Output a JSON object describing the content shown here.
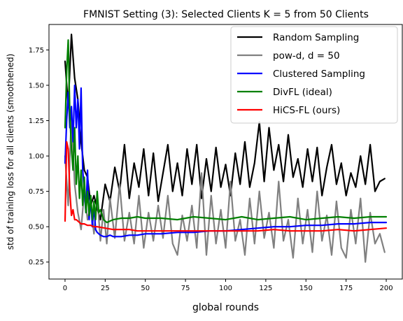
{
  "chart_data": {
    "type": "line",
    "title": "FMNIST Setting (3): Selected Clients K = 5 from 50 Clients",
    "xlabel": "global rounds",
    "ylabel": "std of training loss for all clients (smoothened)",
    "xlim": [
      -10,
      210
    ],
    "ylim": [
      0.13,
      1.93
    ],
    "xticks": [
      0,
      25,
      50,
      75,
      100,
      125,
      150,
      175,
      200
    ],
    "yticks": [
      0.25,
      0.5,
      0.75,
      1.0,
      1.25,
      1.5,
      1.75
    ],
    "ytick_labels": [
      "0.25",
      "0.50",
      "0.75",
      "1.00",
      "1.25",
      "1.50",
      "1.75"
    ],
    "grid": false,
    "legend_position": "top-right",
    "series": [
      {
        "name": "Random Sampling",
        "color": "#000000",
        "x": [
          0,
          2,
          4,
          5,
          6,
          8,
          10,
          12,
          14,
          16,
          18,
          20,
          22,
          25,
          28,
          31,
          34,
          37,
          40,
          43,
          46,
          49,
          52,
          55,
          58,
          61,
          64,
          67,
          70,
          73,
          76,
          79,
          82,
          85,
          88,
          91,
          94,
          97,
          100,
          103,
          106,
          109,
          112,
          115,
          118,
          121,
          124,
          127,
          130,
          133,
          136,
          139,
          142,
          145,
          148,
          151,
          154,
          157,
          160,
          163,
          166,
          169,
          172,
          175,
          178,
          181,
          184,
          187,
          190,
          193,
          196,
          199
        ],
        "values": [
          1.67,
          1.35,
          1.86,
          1.7,
          1.55,
          1.4,
          1.1,
          0.9,
          0.85,
          0.65,
          0.72,
          0.63,
          0.55,
          0.8,
          0.68,
          0.92,
          0.75,
          1.08,
          0.7,
          0.95,
          0.78,
          1.05,
          0.72,
          1.02,
          0.68,
          0.88,
          1.08,
          0.75,
          0.95,
          0.72,
          1.05,
          0.8,
          1.08,
          0.7,
          0.98,
          0.75,
          1.06,
          0.78,
          0.94,
          0.72,
          1.02,
          0.8,
          1.1,
          0.78,
          0.95,
          1.24,
          0.82,
          1.2,
          0.9,
          1.08,
          0.82,
          1.15,
          0.85,
          0.98,
          0.78,
          1.05,
          0.82,
          1.06,
          0.72,
          0.92,
          1.08,
          0.8,
          0.95,
          0.72,
          0.88,
          0.78,
          1.0,
          0.8,
          1.08,
          0.75,
          0.82,
          0.84
        ]
      },
      {
        "name": "pow-d, d = 50",
        "color": "#808080",
        "x": [
          0,
          2,
          4,
          6,
          8,
          10,
          12,
          14,
          16,
          18,
          20,
          22,
          24,
          26,
          28,
          31,
          34,
          37,
          40,
          43,
          46,
          49,
          52,
          55,
          58,
          61,
          64,
          67,
          70,
          73,
          76,
          79,
          82,
          85,
          88,
          91,
          94,
          97,
          100,
          103,
          106,
          109,
          112,
          115,
          118,
          121,
          124,
          127,
          130,
          133,
          136,
          139,
          142,
          145,
          148,
          151,
          154,
          157,
          160,
          163,
          166,
          169,
          172,
          175,
          178,
          181,
          184,
          187,
          190,
          193,
          196,
          199
        ],
        "values": [
          1.0,
          0.65,
          1.3,
          0.8,
          0.6,
          0.48,
          0.75,
          0.55,
          0.65,
          0.45,
          0.72,
          0.4,
          0.62,
          0.38,
          0.7,
          0.42,
          0.8,
          0.4,
          0.6,
          0.38,
          0.72,
          0.35,
          0.6,
          0.4,
          0.65,
          0.42,
          0.72,
          0.38,
          0.3,
          0.58,
          0.4,
          0.65,
          0.35,
          0.88,
          0.3,
          0.72,
          0.38,
          0.62,
          0.35,
          0.82,
          0.4,
          0.55,
          0.3,
          0.7,
          0.38,
          0.75,
          0.42,
          0.6,
          0.35,
          0.82,
          0.4,
          0.55,
          0.28,
          0.7,
          0.38,
          0.62,
          0.32,
          0.75,
          0.4,
          0.58,
          0.3,
          0.68,
          0.35,
          0.28,
          0.62,
          0.38,
          0.7,
          0.25,
          0.6,
          0.38,
          0.45,
          0.32
        ]
      },
      {
        "name": "Clustered Sampling",
        "color": "#0000ff",
        "x": [
          0,
          1,
          2,
          3,
          4,
          5,
          6,
          7,
          8,
          9,
          10,
          11,
          12,
          13,
          14,
          15,
          16,
          17,
          18,
          19,
          20,
          22,
          24,
          26,
          28,
          30,
          35,
          40,
          45,
          50,
          60,
          70,
          80,
          90,
          100,
          110,
          120,
          130,
          140,
          150,
          160,
          170,
          180,
          190,
          200
        ],
        "values": [
          0.95,
          1.25,
          1.45,
          1.2,
          1.35,
          1.1,
          1.5,
          1.2,
          1.4,
          1.05,
          1.48,
          0.9,
          0.75,
          0.6,
          0.9,
          0.55,
          0.7,
          0.5,
          0.65,
          0.48,
          0.46,
          0.44,
          0.43,
          0.43,
          0.44,
          0.43,
          0.43,
          0.44,
          0.44,
          0.45,
          0.45,
          0.46,
          0.46,
          0.47,
          0.47,
          0.48,
          0.49,
          0.5,
          0.5,
          0.51,
          0.51,
          0.52,
          0.52,
          0.53,
          0.53
        ]
      },
      {
        "name": "DivFL (ideal)",
        "color": "#008000",
        "x": [
          0,
          1,
          2,
          3,
          4,
          5,
          6,
          7,
          8,
          9,
          10,
          11,
          12,
          13,
          14,
          15,
          16,
          17,
          18,
          19,
          20,
          21,
          22,
          24,
          26,
          28,
          30,
          35,
          40,
          45,
          50,
          60,
          70,
          80,
          90,
          100,
          110,
          120,
          130,
          140,
          150,
          160,
          170,
          180,
          190,
          200
        ],
        "values": [
          1.2,
          1.6,
          1.82,
          1.3,
          1.05,
          0.9,
          1.2,
          0.8,
          1.0,
          0.7,
          0.9,
          0.65,
          0.85,
          0.6,
          0.75,
          0.58,
          0.72,
          0.55,
          0.68,
          0.55,
          0.75,
          0.6,
          0.62,
          0.55,
          0.53,
          0.54,
          0.55,
          0.56,
          0.56,
          0.57,
          0.56,
          0.56,
          0.55,
          0.57,
          0.56,
          0.55,
          0.57,
          0.55,
          0.56,
          0.57,
          0.55,
          0.56,
          0.57,
          0.56,
          0.57,
          0.57
        ]
      },
      {
        "name": "HiCS-FL (ours)",
        "color": "#ff0000",
        "x": [
          0,
          1,
          2,
          3,
          4,
          5,
          6,
          7,
          8,
          9,
          10,
          12,
          14,
          16,
          18,
          20,
          25,
          30,
          35,
          40,
          45,
          50,
          60,
          70,
          80,
          90,
          100,
          110,
          120,
          130,
          140,
          150,
          160,
          170,
          180,
          190,
          200
        ],
        "values": [
          0.54,
          1.1,
          1.05,
          0.75,
          0.58,
          0.62,
          0.55,
          0.55,
          0.54,
          0.53,
          0.52,
          0.52,
          0.51,
          0.51,
          0.5,
          0.5,
          0.49,
          0.48,
          0.48,
          0.48,
          0.47,
          0.47,
          0.47,
          0.47,
          0.47,
          0.47,
          0.47,
          0.47,
          0.47,
          0.48,
          0.47,
          0.47,
          0.47,
          0.48,
          0.47,
          0.48,
          0.49
        ]
      }
    ]
  }
}
